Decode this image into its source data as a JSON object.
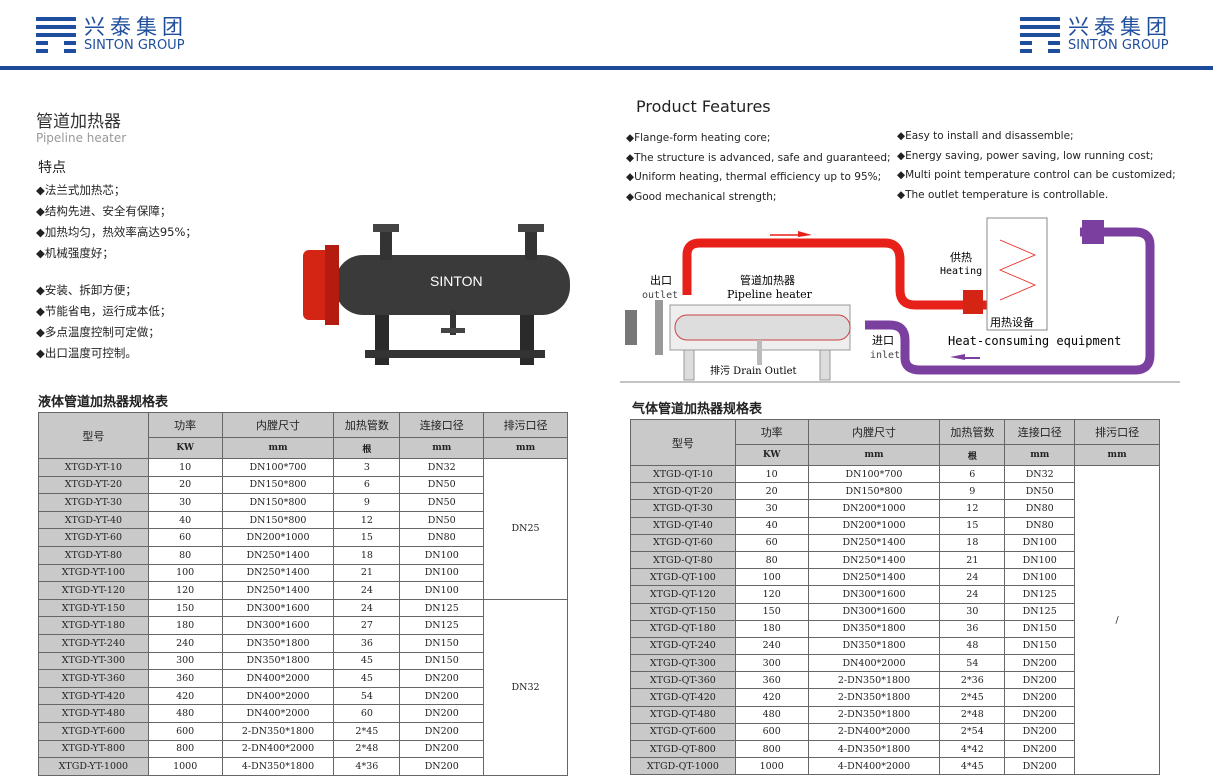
{
  "brand": {
    "cn": "兴泰集团",
    "en": "SINTON GROUP",
    "color": "#1f4e9c"
  },
  "product": {
    "title_cn": "管道加热器",
    "title_en": "Pipeline heater",
    "features_title": "特点",
    "features_a": [
      "◆法兰式加热芯；",
      "◆结构先进、安全有保障；",
      "◆加热均匀，热效率高达95%；",
      "◆机械强度好；"
    ],
    "features_b": [
      "◆安装、拆卸方便；",
      "◆节能省电，运行成本低；",
      "◆多点温度控制可定做；",
      "◆出口温度可控制。"
    ],
    "image_label": "SINTON"
  },
  "features_en": {
    "title": "Product Features",
    "left": [
      "◆Flange-form heating core;",
      "◆The structure is advanced, safe and guaranteed;",
      "◆Uniform heating, thermal efficiency up to 95%;",
      "◆Good mechanical strength;"
    ],
    "right": [
      "◆Easy to install and disassemble;",
      "◆Energy saving, power saving, low running cost;",
      "◆Multi point temperature control can be customized;",
      "◆The outlet temperature is controllable."
    ]
  },
  "diagram": {
    "outlet_cn": "出口",
    "outlet_en": "outlet",
    "heater_cn": "管道加热器",
    "heater_en": "Pipeline heater",
    "heating_cn": "供热",
    "heating_en": "Heating",
    "equip_cn": "用热设备",
    "equip_en": "Heat-consuming equipment",
    "inlet_cn": "进口",
    "inlet_en": "inlet",
    "drain": "排污 Drain Outlet",
    "hot_color": "#e8201a",
    "cold_color": "#7b3fa0"
  },
  "liquid_table": {
    "title": "液体管道加热器规格表",
    "headers": [
      "型号",
      "功率",
      "内膛尺寸",
      "加热管数",
      "连接口径",
      "排污口径"
    ],
    "units": [
      "KW",
      "mm",
      "根",
      "mm",
      "mm"
    ],
    "drain_groups": [
      {
        "value": "DN25",
        "rows": 8
      },
      {
        "value": "DN32",
        "rows": 10
      }
    ],
    "rows": [
      [
        "XTGD-YT-10",
        "10",
        "DN100*700",
        "3",
        "DN32"
      ],
      [
        "XTGD-YT-20",
        "20",
        "DN150*800",
        "6",
        "DN50"
      ],
      [
        "XTGD-YT-30",
        "30",
        "DN150*800",
        "9",
        "DN50"
      ],
      [
        "XTGD-YT-40",
        "40",
        "DN150*800",
        "12",
        "DN50"
      ],
      [
        "XTGD-YT-60",
        "60",
        "DN200*1000",
        "15",
        "DN80"
      ],
      [
        "XTGD-YT-80",
        "80",
        "DN250*1400",
        "18",
        "DN100"
      ],
      [
        "XTGD-YT-100",
        "100",
        "DN250*1400",
        "21",
        "DN100"
      ],
      [
        "XTGD-YT-120",
        "120",
        "DN250*1400",
        "24",
        "DN100"
      ],
      [
        "XTGD-YT-150",
        "150",
        "DN300*1600",
        "24",
        "DN125"
      ],
      [
        "XTGD-YT-180",
        "180",
        "DN300*1600",
        "27",
        "DN125"
      ],
      [
        "XTGD-YT-240",
        "240",
        "DN350*1800",
        "36",
        "DN150"
      ],
      [
        "XTGD-YT-300",
        "300",
        "DN350*1800",
        "45",
        "DN150"
      ],
      [
        "XTGD-YT-360",
        "360",
        "DN400*2000",
        "45",
        "DN200"
      ],
      [
        "XTGD-YT-420",
        "420",
        "DN400*2000",
        "54",
        "DN200"
      ],
      [
        "XTGD-YT-480",
        "480",
        "DN400*2000",
        "60",
        "DN200"
      ],
      [
        "XTGD-YT-600",
        "600",
        "2-DN350*1800",
        "2*45",
        "DN200"
      ],
      [
        "XTGD-YT-800",
        "800",
        "2-DN400*2000",
        "2*48",
        "DN200"
      ],
      [
        "XTGD-YT-1000",
        "1000",
        "4-DN350*1800",
        "4*36",
        "DN200"
      ]
    ]
  },
  "gas_table": {
    "title": "气体管道加热器规格表",
    "headers": [
      "型号",
      "功率",
      "内膛尺寸",
      "加热管数",
      "连接口径",
      "排污口径"
    ],
    "units": [
      "KW",
      "mm",
      "根",
      "mm",
      "mm"
    ],
    "drain_groups": [
      {
        "value": "/",
        "rows": 18
      }
    ],
    "rows": [
      [
        "XTGD-QT-10",
        "10",
        "DN100*700",
        "6",
        "DN32"
      ],
      [
        "XTGD-QT-20",
        "20",
        "DN150*800",
        "9",
        "DN50"
      ],
      [
        "XTGD-QT-30",
        "30",
        "DN200*1000",
        "12",
        "DN80"
      ],
      [
        "XTGD-QT-40",
        "40",
        "DN200*1000",
        "15",
        "DN80"
      ],
      [
        "XTGD-QT-60",
        "60",
        "DN250*1400",
        "18",
        "DN100"
      ],
      [
        "XTGD-QT-80",
        "80",
        "DN250*1400",
        "21",
        "DN100"
      ],
      [
        "XTGD-QT-100",
        "100",
        "DN250*1400",
        "24",
        "DN100"
      ],
      [
        "XTGD-QT-120",
        "120",
        "DN300*1600",
        "24",
        "DN125"
      ],
      [
        "XTGD-QT-150",
        "150",
        "DN300*1600",
        "30",
        "DN125"
      ],
      [
        "XTGD-QT-180",
        "180",
        "DN350*1800",
        "36",
        "DN150"
      ],
      [
        "XTGD-QT-240",
        "240",
        "DN350*1800",
        "48",
        "DN150"
      ],
      [
        "XTGD-QT-300",
        "300",
        "DN400*2000",
        "54",
        "DN200"
      ],
      [
        "XTGD-QT-360",
        "360",
        "2-DN350*1800",
        "2*36",
        "DN200"
      ],
      [
        "XTGD-QT-420",
        "420",
        "2-DN350*1800",
        "2*45",
        "DN200"
      ],
      [
        "XTGD-QT-480",
        "480",
        "2-DN350*1800",
        "2*48",
        "DN200"
      ],
      [
        "XTGD-QT-600",
        "600",
        "2-DN400*2000",
        "2*54",
        "DN200"
      ],
      [
        "XTGD-QT-800",
        "800",
        "4-DN350*1800",
        "4*42",
        "DN200"
      ],
      [
        "XTGD-QT-1000",
        "1000",
        "4-DN400*2000",
        "4*45",
        "DN200"
      ]
    ]
  }
}
